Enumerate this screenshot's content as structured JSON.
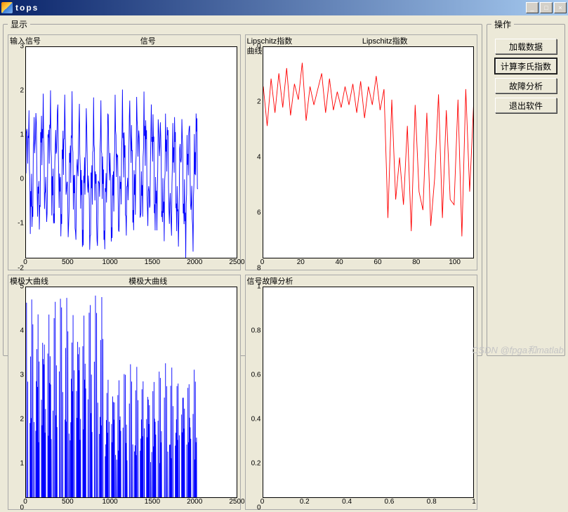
{
  "window": {
    "title": "tops",
    "minimize": "_",
    "maximize": "□",
    "close": "×"
  },
  "panels": {
    "display_legend": "显示",
    "ops_legend": "操作"
  },
  "buttons": {
    "load": "加载数据",
    "compute": "计算李氏指数",
    "fault": "故障分析",
    "exit": "退出软件"
  },
  "charts": {
    "signal": {
      "corner": "输入信号",
      "title": "信号",
      "type": "line",
      "color": "#0000ff",
      "background": "#ffffff",
      "xlim": [
        0,
        2500
      ],
      "xtick_step": 500,
      "ylim": [
        -2,
        3
      ],
      "yticks": [
        -2,
        -1,
        0,
        1,
        2,
        3
      ],
      "data_xmax": 2048,
      "pattern": "dense-noise",
      "amplitude": 2.1,
      "linewidth": 1
    },
    "lipschitz": {
      "corner": "Lipschitz指数曲线",
      "title": "Lipschitz指数",
      "type": "line",
      "color": "#ff0000",
      "background": "#ffffff",
      "xlim": [
        0,
        110
      ],
      "xticks": [
        0,
        20,
        40,
        60,
        80,
        100
      ],
      "ylim_inverted": true,
      "ylim": [
        0,
        8
      ],
      "yticks": [
        0,
        2,
        4,
        6,
        8
      ],
      "values": [
        1.5,
        3,
        1.2,
        2.5,
        1.0,
        2.3,
        0.8,
        2.6,
        1.4,
        2.0,
        0.6,
        2.8,
        1.5,
        2.2,
        1.6,
        1.0,
        2.5,
        1.2,
        2.4,
        1.7,
        2.3,
        1.5,
        2.2,
        1.4,
        2.5,
        1.3,
        2.7,
        1.5,
        2.2,
        1.1,
        2.4,
        1.6,
        6.5,
        2.0,
        5.8,
        4.2,
        6.0,
        3.0,
        7.0,
        2.2,
        5.5,
        6.2,
        2.5,
        6.8,
        5.0,
        1.8,
        6.5,
        2.4,
        5.8,
        6.0,
        2.0,
        7.2,
        1.6,
        5.5,
        2.2
      ],
      "linewidth": 1
    },
    "modmax": {
      "corner": "模极大曲线",
      "title": "模极大曲线",
      "type": "line",
      "color": "#0000ff",
      "background": "#ffffff",
      "xlim": [
        0,
        2500
      ],
      "xtick_step": 500,
      "ylim": [
        0,
        5
      ],
      "yticks": [
        0,
        1,
        2,
        3,
        4,
        5
      ],
      "data_xmax": 2048,
      "pattern": "spikes",
      "linewidth": 1
    },
    "fault": {
      "corner": "信号故障分析",
      "title": "",
      "type": "empty",
      "background": "#ffffff",
      "xlim": [
        0,
        1
      ],
      "xticks": [
        0,
        0.2,
        0.4,
        0.6,
        0.8,
        1
      ],
      "ylim": [
        0,
        1
      ],
      "yticks": [
        0,
        0.2,
        0.4,
        0.6,
        0.8,
        1
      ]
    }
  },
  "watermark": "CSDN @fpga和matlab",
  "colors": {
    "window_bg": "#ece9d8",
    "border": "#a0a0a0"
  }
}
